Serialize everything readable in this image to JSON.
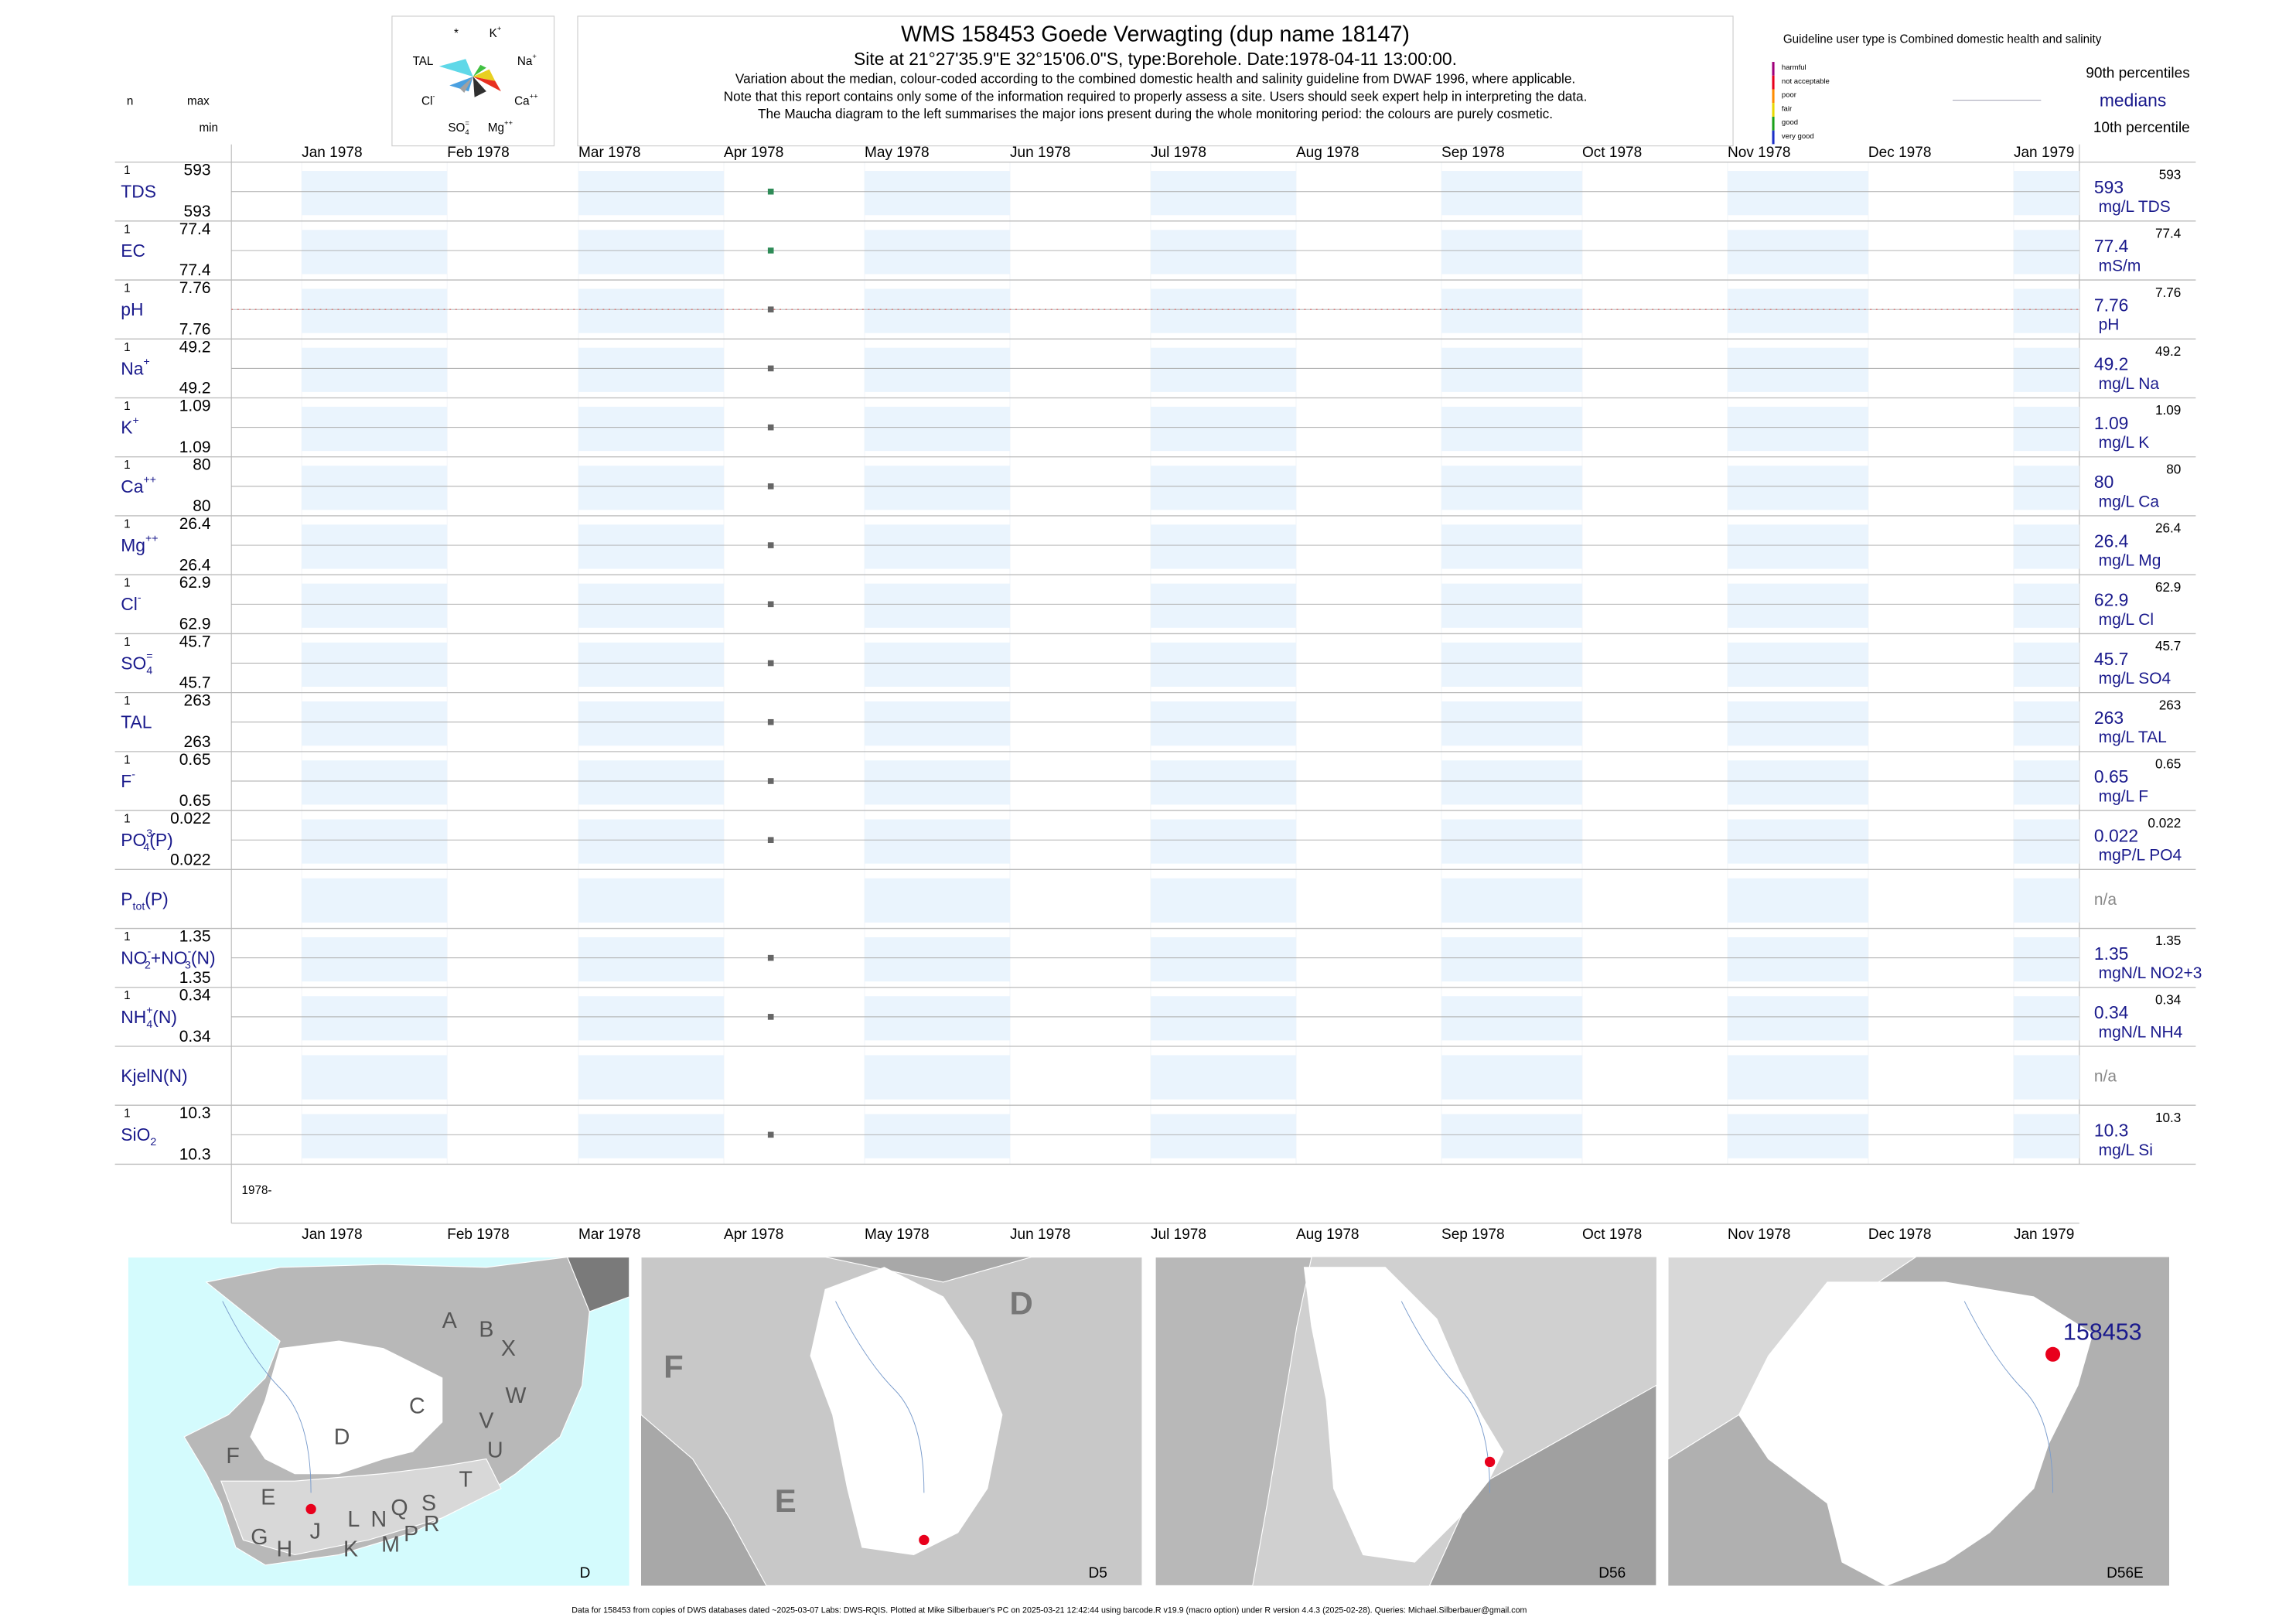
{
  "header": {
    "title": "WMS 158453  Goede Verwagting (dup name 18147)",
    "subtitle": "Site at 21°27'35.9\"E 32°15'06.0\"S, type:Borehole. Date:1978-04-11 13:00:00.",
    "notes": [
      "Variation about the median,  colour-coded according to the combined domestic health and salinity guideline from DWAF 1996, where applicable.",
      "Note that this report contains only some of the information required to properly assess a site. Users should seek expert help in interpreting the data.",
      "The Maucha diagram to the left summarises the major ions present during the whole monitoring period: the colours are purely cosmetic."
    ]
  },
  "maucha": {
    "labels": [
      [
        {
          "text": "*"
        }
      ],
      [
        {
          "text": "K"
        },
        {
          "text": "+",
          "pos": "sup"
        }
      ],
      [
        {
          "text": "TAL"
        }
      ],
      [
        {
          "text": "Na"
        },
        {
          "text": "+",
          "pos": "sup"
        }
      ],
      [
        {
          "text": "Cl"
        },
        {
          "text": "-",
          "pos": "sup"
        }
      ],
      [
        {
          "text": "Ca"
        },
        {
          "text": "++",
          "pos": "sup"
        }
      ],
      [
        {
          "text": "SO"
        },
        {
          "text": "=",
          "pos": "sup"
        },
        {
          "text": "4",
          "pos": "sub"
        }
      ],
      [
        {
          "text": "Mg"
        },
        {
          "text": "++",
          "pos": "sup"
        }
      ]
    ]
  },
  "guideline": {
    "title": "Guideline user type is Combined domestic health and salinity",
    "levels": [
      {
        "name": "harmful",
        "color": "#a0007a"
      },
      {
        "name": "not acceptable",
        "color": "#e8001c"
      },
      {
        "name": "poor",
        "color": "#ff8c00"
      },
      {
        "name": "fair",
        "color": "#e8d800"
      },
      {
        "name": "good",
        "color": "#1aa01a"
      },
      {
        "name": "very good",
        "color": "#1c2fc8"
      }
    ],
    "upper": "90th percentiles",
    "median": "medians",
    "lower": "10th percentile"
  },
  "columns": {
    "n": "n",
    "max": "max",
    "min": "min"
  },
  "time_axis": {
    "xlim": [
      "1977-12-17",
      "1979-01-15"
    ],
    "start_label": "1978-",
    "sample_date": "1978-04-11",
    "xticks": [
      {
        "value": "1978-01-01",
        "label": "Jan 1978"
      },
      {
        "value": "1978-02-01",
        "label": "Feb 1978"
      },
      {
        "value": "1978-03-01",
        "label": "Mar 1978"
      },
      {
        "value": "1978-04-01",
        "label": "Apr 1978"
      },
      {
        "value": "1978-05-01",
        "label": "May 1978"
      },
      {
        "value": "1978-06-01",
        "label": "Jun 1978"
      },
      {
        "value": "1978-07-01",
        "label": "Jul 1978"
      },
      {
        "value": "1978-08-01",
        "label": "Aug 1978"
      },
      {
        "value": "1978-09-01",
        "label": "Sep 1978"
      },
      {
        "value": "1978-10-01",
        "label": "Oct 1978"
      },
      {
        "value": "1978-11-01",
        "label": "Nov 1978"
      },
      {
        "value": "1978-12-01",
        "label": "Dec 1978"
      },
      {
        "value": "1979-01-01",
        "label": "Jan 1979"
      }
    ]
  },
  "rows": [
    {
      "label": [
        {
          "text": "TDS"
        }
      ],
      "n": 1,
      "max": 593,
      "min": 593,
      "median": 593,
      "unit": "mg/L TDS",
      "color": "#2e8b57"
    },
    {
      "label": [
        {
          "text": "EC"
        }
      ],
      "n": 1,
      "max": 77.4,
      "min": 77.4,
      "median": 77.4,
      "unit": "mS/m",
      "color": "#2e8b57"
    },
    {
      "label": [
        {
          "text": "pH"
        }
      ],
      "n": 1,
      "max": 7.76,
      "min": 7.76,
      "median": 7.76,
      "unit": "pH",
      "color": "#666666",
      "guideline_color": "#d98080"
    },
    {
      "label": [
        {
          "text": "Na"
        },
        {
          "text": "+",
          "pos": "sup"
        }
      ],
      "n": 1,
      "max": 49.2,
      "min": 49.2,
      "median": 49.2,
      "unit": "mg/L Na",
      "color": "#666666"
    },
    {
      "label": [
        {
          "text": "K"
        },
        {
          "text": "+",
          "pos": "sup"
        }
      ],
      "n": 1,
      "max": 1.09,
      "min": 1.09,
      "median": 1.09,
      "unit": "mg/L K",
      "color": "#666666"
    },
    {
      "label": [
        {
          "text": "Ca"
        },
        {
          "text": "++",
          "pos": "sup"
        }
      ],
      "n": 1,
      "max": 80,
      "min": 80,
      "median": 80,
      "unit": "mg/L Ca",
      "color": "#666666"
    },
    {
      "label": [
        {
          "text": "Mg"
        },
        {
          "text": "++",
          "pos": "sup"
        }
      ],
      "n": 1,
      "max": 26.4,
      "min": 26.4,
      "median": 26.4,
      "unit": "mg/L Mg",
      "color": "#666666"
    },
    {
      "label": [
        {
          "text": "Cl"
        },
        {
          "text": "-",
          "pos": "sup"
        }
      ],
      "n": 1,
      "max": 62.9,
      "min": 62.9,
      "median": 62.9,
      "unit": "mg/L Cl",
      "color": "#666666"
    },
    {
      "label": [
        {
          "text": "SO"
        },
        {
          "text": "=",
          "pos": "sup"
        },
        {
          "text": "4",
          "pos": "sub"
        }
      ],
      "n": 1,
      "max": 45.7,
      "min": 45.7,
      "median": 45.7,
      "unit": "mg/L SO4",
      "color": "#666666"
    },
    {
      "label": [
        {
          "text": "TAL"
        }
      ],
      "n": 1,
      "max": 263,
      "min": 263,
      "median": 263,
      "unit": "mg/L TAL",
      "color": "#666666"
    },
    {
      "label": [
        {
          "text": "F"
        },
        {
          "text": "-",
          "pos": "sup"
        }
      ],
      "n": 1,
      "max": 0.65,
      "min": 0.65,
      "median": 0.65,
      "unit": "mg/L F",
      "color": "#666666"
    },
    {
      "label": [
        {
          "text": "PO"
        },
        {
          "text": "3-",
          "pos": "sup"
        },
        {
          "text": "4",
          "pos": "sub"
        },
        {
          "text": "(P)"
        }
      ],
      "n": 1,
      "max": 0.022,
      "min": 0.022,
      "median": 0.022,
      "unit": "mgP/L PO4",
      "color": "#666666"
    },
    {
      "label": [
        {
          "text": "P"
        },
        {
          "text": "tot",
          "pos": "sub"
        },
        {
          "text": "(P)"
        }
      ],
      "na": "n/a"
    },
    {
      "label": [
        {
          "text": "NO"
        },
        {
          "text": "-",
          "pos": "sup"
        },
        {
          "text": "2",
          "pos": "sub"
        },
        {
          "text": "+NO"
        },
        {
          "text": "-",
          "pos": "sup"
        },
        {
          "text": "3",
          "pos": "sub"
        },
        {
          "text": "(N)"
        }
      ],
      "n": 1,
      "max": 1.35,
      "min": 1.35,
      "median": 1.35,
      "unit": "mgN/L NO2+3",
      "color": "#666666"
    },
    {
      "label": [
        {
          "text": "NH"
        },
        {
          "text": "+",
          "pos": "sup"
        },
        {
          "text": "4",
          "pos": "sub"
        },
        {
          "text": "(N)"
        }
      ],
      "n": 1,
      "max": 0.34,
      "min": 0.34,
      "median": 0.34,
      "unit": "mgN/L NH4",
      "color": "#666666"
    },
    {
      "label": [
        {
          "text": "KjelN(N)"
        }
      ],
      "na": "n/a"
    },
    {
      "label": [
        {
          "text": "SiO"
        },
        {
          "text": "2",
          "pos": "sub"
        }
      ],
      "n": 1,
      "max": 10.3,
      "min": 10.3,
      "median": 10.3,
      "unit": "mg/L Si",
      "color": "#666666"
    }
  ],
  "maps": [
    {
      "label": "D",
      "regions": [
        "A",
        "B",
        "X",
        "W",
        "C",
        "V",
        "U",
        "D",
        "F",
        "E",
        "J",
        "L",
        "N",
        "Q",
        "S",
        "T",
        "R",
        "P",
        "M",
        "K",
        "H",
        "G"
      ]
    },
    {
      "label": "D5",
      "regions": [
        "D",
        "F",
        "E"
      ]
    },
    {
      "label": "D56"
    },
    {
      "label": "D56E",
      "site": "158453"
    }
  ],
  "footer": "Data for 158453 from copies of DWS databases dated ~2025-03-07 Labs: DWS-RQIS. Plotted at Mike Silberbauer's PC on 2025-03-21 12:42:44 using barcode.R v19.9 (macro option) under R version 4.4.3 (2025-02-28). Queries: Michael.Silberbauer@gmail.com"
}
